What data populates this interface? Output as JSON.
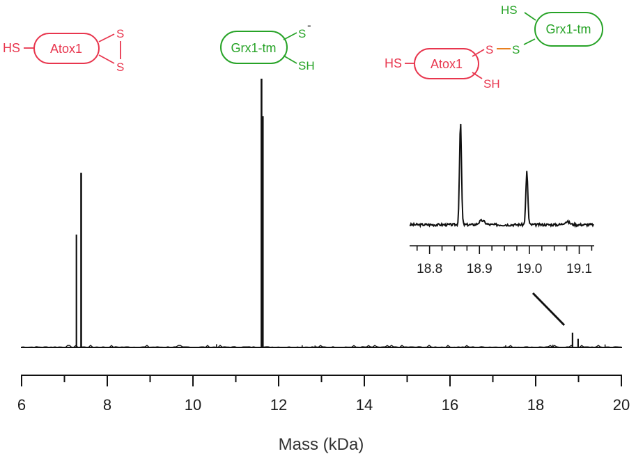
{
  "chart_data": {
    "type": "line",
    "xlabel": "Mass (kDa)",
    "xlim": [
      6,
      20
    ],
    "ylim": [
      0,
      100
    ],
    "x_ticks": [
      "6",
      "8",
      "10",
      "12",
      "14",
      "16",
      "18",
      "20"
    ],
    "series": [
      {
        "peaks": [
          {
            "x": 7.28,
            "y": 42
          },
          {
            "x": 7.39,
            "y": 65
          },
          {
            "x": 11.6,
            "y": 100
          },
          {
            "x": 11.63,
            "y": 86
          },
          {
            "x": 18.86,
            "y": 5.5
          },
          {
            "x": 18.99,
            "y": 3.2
          }
        ],
        "minor_peaks": [
          {
            "x": 10.55,
            "y": 1.2
          },
          {
            "x": 12.55,
            "y": 0.8
          },
          {
            "x": 12.85,
            "y": 0.7
          },
          {
            "x": 14.85,
            "y": 0.6
          },
          {
            "x": 17.3,
            "y": 0.8
          },
          {
            "x": 18.4,
            "y": 1.0
          },
          {
            "x": 19.62,
            "y": 1.1
          }
        ]
      }
    ],
    "inset": {
      "xlim": [
        18.76,
        19.13
      ],
      "x_ticks": [
        "18.8",
        "18.9",
        "19.0",
        "19.1"
      ],
      "peaks": [
        {
          "x": 18.862,
          "y": 100
        },
        {
          "x": 18.995,
          "y": 52
        }
      ]
    },
    "annotations": [
      {
        "label": "Atox1",
        "color": "#e8364e",
        "groups": [
          "HS",
          "S",
          "S"
        ]
      },
      {
        "label": "Grx1-tm",
        "color": "#27a327",
        "groups": [
          "S",
          "-",
          "SH"
        ]
      },
      {
        "atox_label": "Atox1",
        "grx_label": "Grx1-tm",
        "groups": [
          "HS",
          "S",
          "S",
          "HS",
          "SH"
        ],
        "atox_color": "#e8364e",
        "grx_color": "#27a327"
      }
    ]
  }
}
